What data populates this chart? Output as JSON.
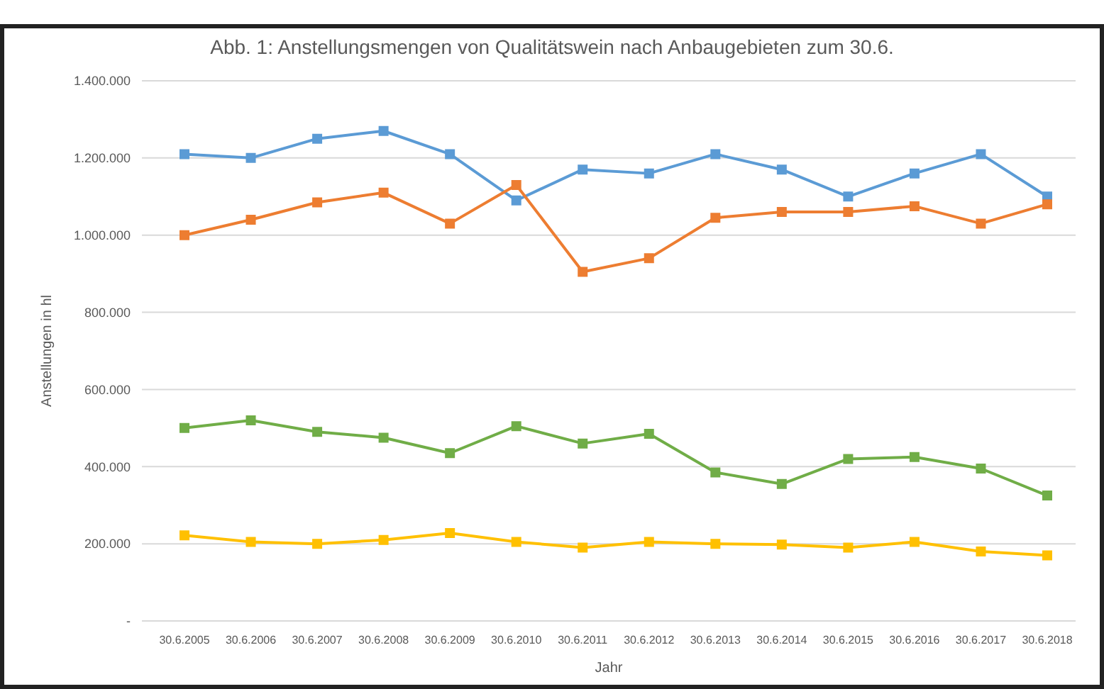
{
  "chart_data": {
    "type": "line",
    "title": "Abb. 1: Anstellungsmengen von Qualitätswein nach Anbaugebieten zum 30.6.",
    "xlabel": "Jahr",
    "ylabel": "Anstellungen in hl",
    "categories": [
      "30.6.2005",
      "30.6.2006",
      "30.6.2007",
      "30.6.2008",
      "30.6.2009",
      "30.6.2010",
      "30.6.2011",
      "30.6.2012",
      "30.6.2013",
      "30.6.2014",
      "30.6.2015",
      "30.6.2016",
      "30.6.2017",
      "30.6.2018"
    ],
    "series": [
      {
        "color": "#5b9bd5",
        "values": [
          1210000,
          1200000,
          1250000,
          1270000,
          1210000,
          1090000,
          1170000,
          1160000,
          1210000,
          1170000,
          1100000,
          1160000,
          1210000,
          1100000
        ]
      },
      {
        "color": "#ed7d31",
        "values": [
          1000000,
          1040000,
          1085000,
          1110000,
          1030000,
          1130000,
          905000,
          940000,
          1045000,
          1060000,
          1060000,
          1075000,
          1030000,
          1080000
        ]
      },
      {
        "color": "#70ad47",
        "values": [
          500000,
          520000,
          490000,
          475000,
          435000,
          505000,
          460000,
          485000,
          385000,
          355000,
          420000,
          425000,
          395000,
          325000
        ]
      },
      {
        "color": "#ffc000",
        "values": [
          222000,
          205000,
          200000,
          210000,
          228000,
          205000,
          190000,
          205000,
          200000,
          198000,
          190000,
          205000,
          180000,
          170000
        ]
      }
    ],
    "ylim": [
      0,
      1400000
    ],
    "yticks": [
      {
        "value": 0,
        "label": "-"
      },
      {
        "value": 200000,
        "label": "200.000"
      },
      {
        "value": 400000,
        "label": "400.000"
      },
      {
        "value": 600000,
        "label": "600.000"
      },
      {
        "value": 800000,
        "label": "800.000"
      },
      {
        "value": 1000000,
        "label": "1.000.000"
      },
      {
        "value": 1200000,
        "label": "1.200.000"
      },
      {
        "value": 1400000,
        "label": "1.400.000"
      }
    ],
    "grid": "y",
    "marker": "square",
    "line_style": "solid"
  }
}
